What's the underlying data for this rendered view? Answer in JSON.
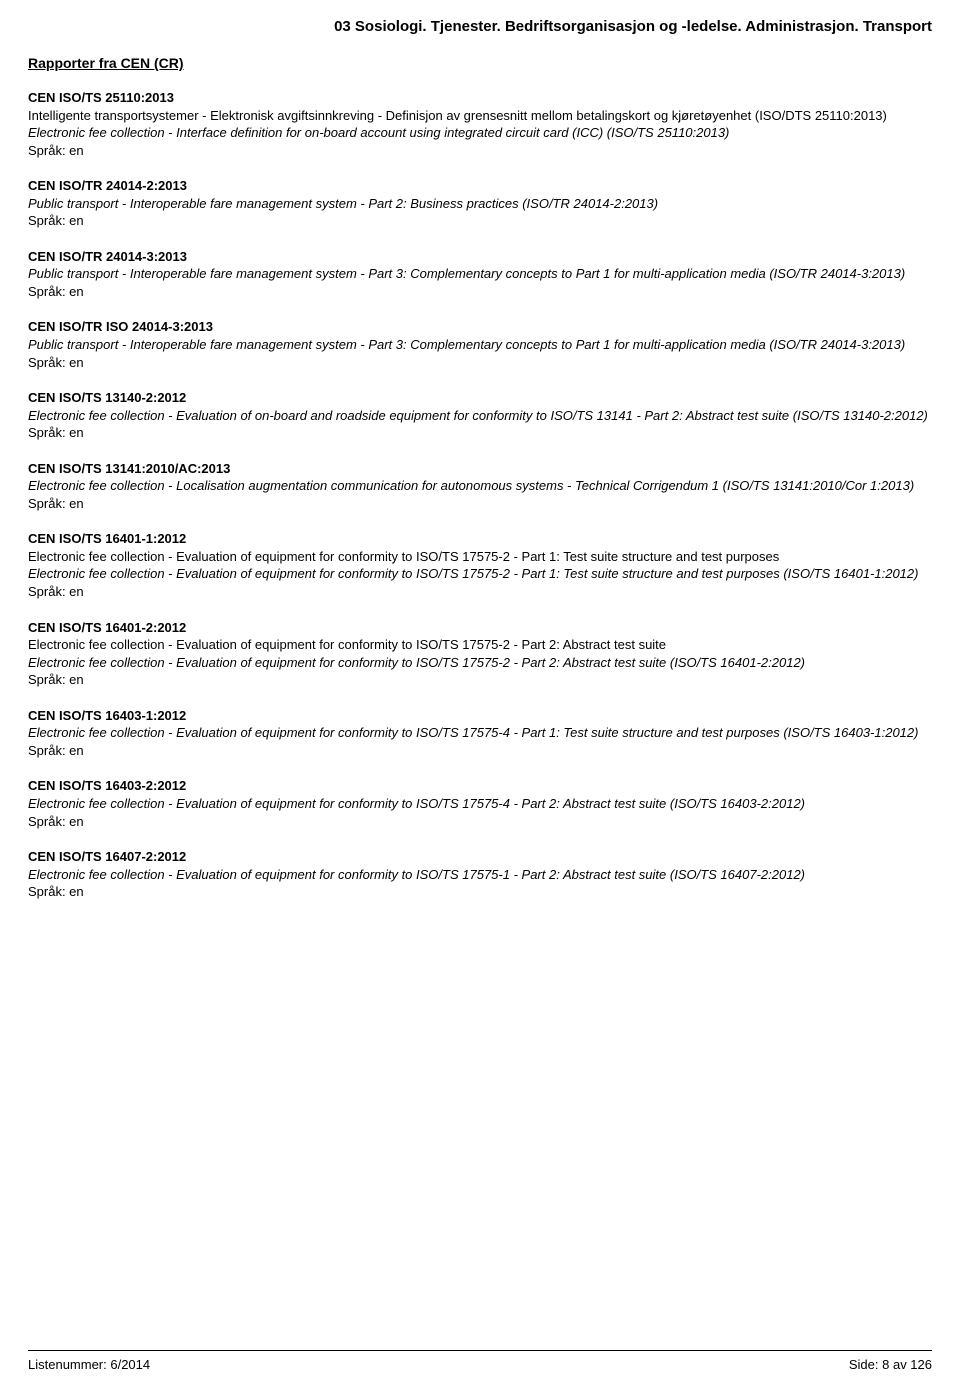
{
  "header": "03 Sosiologi. Tjenester. Bedriftsorganisasjon og -ledelse. Administrasjon. Transport",
  "sectionTitle": "Rapporter fra CEN (CR)",
  "entries": [
    {
      "code": "CEN ISO/TS 25110:2013",
      "desc": "Intelligente transportsystemer - Elektronisk avgiftsinnkreving - Definisjon av grensesnitt mellom betalingskort og kjøretøyenhet (ISO/DTS 25110:2013)",
      "italic": "Electronic fee collection - Interface definition for on-board account using integrated circuit card (ICC) (ISO/TS 25110:2013)",
      "lang": "Språk: en"
    },
    {
      "code": "CEN ISO/TR 24014-2:2013",
      "italic": "Public transport - Interoperable fare management system - Part 2: Business practices (ISO/TR 24014-2:2013)",
      "lang": "Språk: en"
    },
    {
      "code": "CEN ISO/TR 24014-3:2013",
      "italic": "Public transport - Interoperable fare management system - Part 3: Complementary concepts to Part 1 for multi-application media (ISO/TR 24014-3:2013)",
      "lang": "Språk: en"
    },
    {
      "code": "CEN ISO/TR ISO 24014-3:2013",
      "italic": "Public transport - Interoperable fare management system - Part 3: Complementary concepts to Part 1 for multi-application media (ISO/TR 24014-3:2013)",
      "lang": "Språk: en"
    },
    {
      "code": "CEN ISO/TS 13140-2:2012",
      "italic": "Electronic fee collection - Evaluation of on-board and roadside equipment for conformity to ISO/TS 13141 - Part 2: Abstract test suite (ISO/TS 13140-2:2012)",
      "lang": "Språk: en"
    },
    {
      "code": "CEN ISO/TS 13141:2010/AC:2013",
      "italic": "Electronic fee collection - Localisation augmentation communication for autonomous systems - Technical Corrigendum 1 (ISO/TS 13141:2010/Cor 1:2013)",
      "lang": "Språk: en"
    },
    {
      "code": "CEN ISO/TS 16401-1:2012",
      "desc": "Electronic fee collection - Evaluation of equipment for conformity to ISO/TS 17575-2 - Part 1: Test suite structure and test purposes",
      "italic": "Electronic fee collection - Evaluation of equipment for conformity to ISO/TS 17575-2 - Part 1: Test suite structure and test purposes (ISO/TS 16401-1:2012)",
      "lang": "Språk: en"
    },
    {
      "code": "CEN ISO/TS 16401-2:2012",
      "desc": "Electronic fee collection - Evaluation of equipment for conformity to ISO/TS 17575-2 - Part 2: Abstract test suite",
      "italic": "Electronic fee collection - Evaluation of equipment for conformity to ISO/TS 17575-2 - Part 2: Abstract test suite (ISO/TS 16401-2:2012)",
      "lang": "Språk: en"
    },
    {
      "code": "CEN ISO/TS 16403-1:2012",
      "italic": "Electronic fee collection - Evaluation of equipment for conformity to ISO/TS 17575-4 - Part 1: Test suite structure and test purposes (ISO/TS 16403-1:2012)",
      "lang": "Språk: en"
    },
    {
      "code": "CEN ISO/TS 16403-2:2012",
      "italic": "Electronic fee collection - Evaluation of equipment for conformity to ISO/TS 17575-4 - Part 2: Abstract test suite (ISO/TS 16403-2:2012)",
      "lang": "Språk: en"
    },
    {
      "code": "CEN ISO/TS 16407-2:2012",
      "italic": "Electronic fee collection - Evaluation of equipment for conformity to ISO/TS 17575-1 - Part 2: Abstract test suite (ISO/TS 16407-2:2012)",
      "lang": "Språk: en"
    }
  ],
  "footer": {
    "left": "Listenummer: 6/2014",
    "right": "Side: 8 av 126"
  }
}
